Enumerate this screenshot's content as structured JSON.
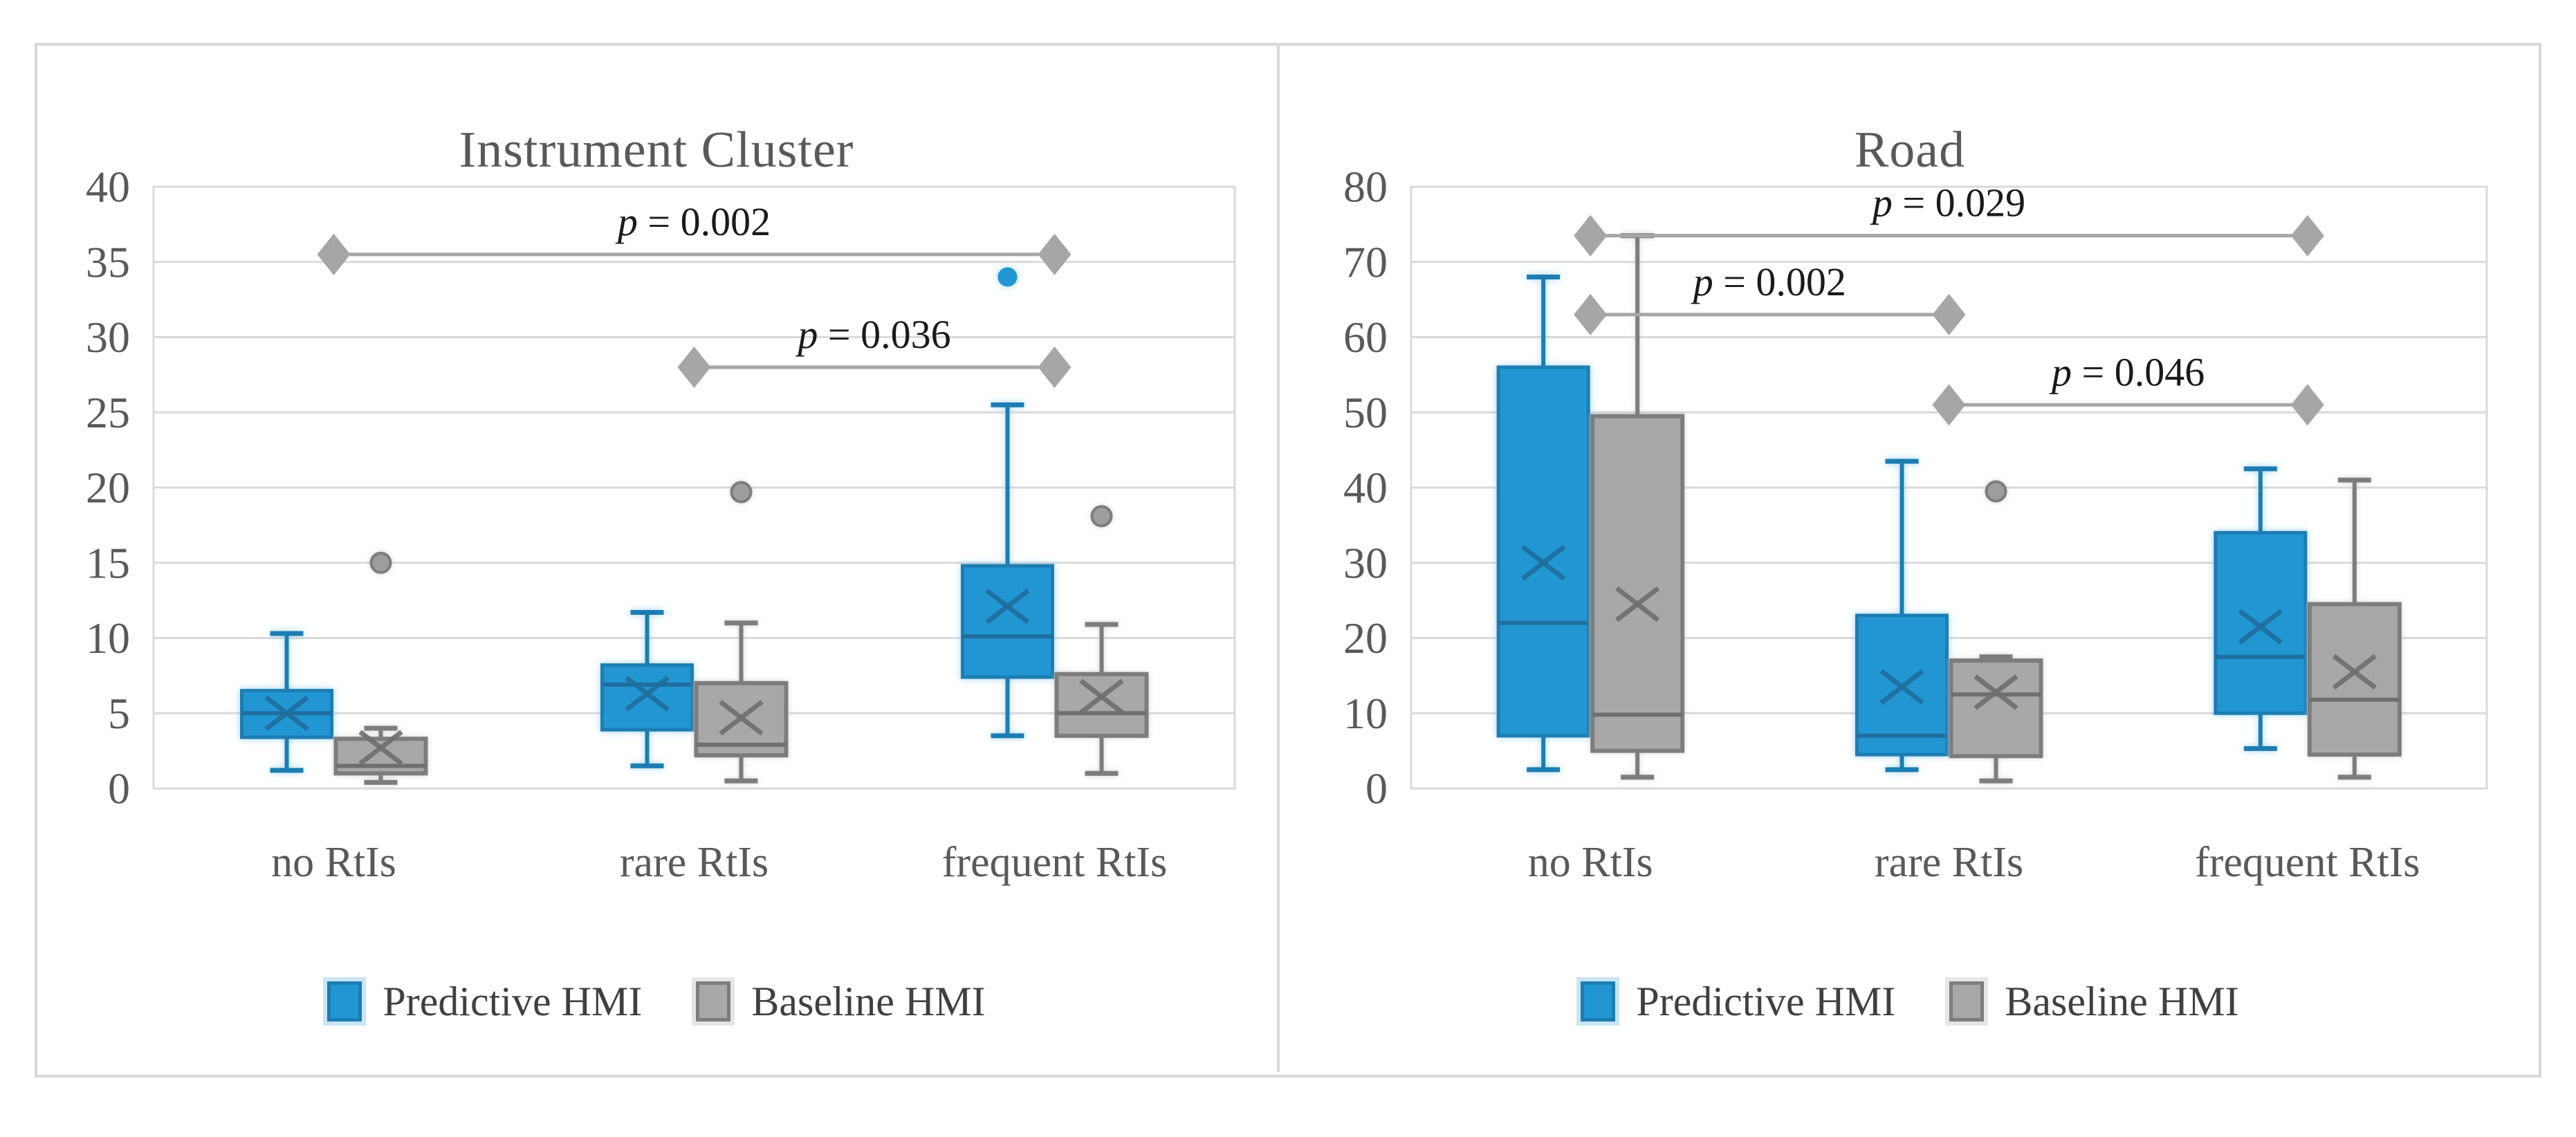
{
  "figure": {
    "border_color": "#d9d9d9",
    "gridline_color": "#d9d9d9",
    "axis_text_color": "#595959",
    "annotation_color": "#a6a6a6",
    "p_text_color": "#1a1a1a"
  },
  "chart_data": [
    {
      "type": "box",
      "title": "Instrument Cluster",
      "categories": [
        "no RtIs",
        "rare RtIs",
        "frequent RtIs"
      ],
      "ylim": [
        0,
        40
      ],
      "yticks": [
        0,
        5,
        10,
        15,
        20,
        25,
        30,
        35,
        40
      ],
      "grid": true,
      "legend_position": "bottom",
      "series": [
        {
          "name": "Predictive HMI",
          "color": "#2196d3",
          "edge": "#1d7db2",
          "detail": "#1f6e9d",
          "boxes": [
            {
              "min": 1.2,
              "q1": 3.4,
              "med": 5.0,
              "q3": 6.5,
              "max": 10.3,
              "mean": 5.0,
              "outliers": []
            },
            {
              "min": 1.5,
              "q1": 3.9,
              "med": 6.9,
              "q3": 8.2,
              "max": 11.7,
              "mean": 6.3,
              "outliers": []
            },
            {
              "min": 3.5,
              "q1": 7.4,
              "med": 10.1,
              "q3": 14.8,
              "max": 25.5,
              "mean": 12.1,
              "outliers": [
                34
              ]
            }
          ]
        },
        {
          "name": "Baseline HMI",
          "color": "#a8a8a8",
          "edge": "#7d7d7d",
          "detail": "#6f6f6f",
          "boxes": [
            {
              "min": 0.4,
              "q1": 1.0,
              "med": 1.5,
              "q3": 3.3,
              "max": 4.0,
              "mean": 2.7,
              "outliers": [
                15
              ]
            },
            {
              "min": 0.5,
              "q1": 2.2,
              "med": 2.9,
              "q3": 7.0,
              "max": 11.0,
              "mean": 4.7,
              "outliers": [
                19.7
              ]
            },
            {
              "min": 1.0,
              "q1": 3.5,
              "med": 5.0,
              "q3": 7.6,
              "max": 10.9,
              "mean": 6.1,
              "outliers": [
                18.1
              ]
            }
          ]
        }
      ],
      "annotations": [
        {
          "label": "p = 0.002",
          "from": 0,
          "to": 2,
          "y": 35.5
        },
        {
          "label": "p = 0.036",
          "from": 1,
          "to": 2,
          "y": 28
        }
      ]
    },
    {
      "type": "box",
      "title": "Road",
      "categories": [
        "no RtIs",
        "rare RtIs",
        "frequent RtIs"
      ],
      "ylim": [
        0,
        80
      ],
      "yticks": [
        0,
        10,
        20,
        30,
        40,
        50,
        60,
        70,
        80
      ],
      "grid": true,
      "legend_position": "bottom",
      "series": [
        {
          "name": "Predictive HMI",
          "color": "#2196d3",
          "edge": "#1d7db2",
          "detail": "#1f6e9d",
          "boxes": [
            {
              "min": 2.5,
              "q1": 7.0,
              "med": 22.0,
              "q3": 56.0,
              "max": 68.0,
              "mean": 30.0,
              "outliers": []
            },
            {
              "min": 2.5,
              "q1": 4.5,
              "med": 7.0,
              "q3": 23.0,
              "max": 43.5,
              "mean": 13.5,
              "outliers": []
            },
            {
              "min": 5.3,
              "q1": 10.0,
              "med": 17.5,
              "q3": 34.0,
              "max": 42.5,
              "mean": 21.5,
              "outliers": []
            }
          ]
        },
        {
          "name": "Baseline HMI",
          "color": "#a8a8a8",
          "edge": "#7d7d7d",
          "detail": "#6f6f6f",
          "boxes": [
            {
              "min": 1.5,
              "q1": 5.0,
              "med": 9.8,
              "q3": 49.5,
              "max": 73.5,
              "mean": 24.5,
              "outliers": []
            },
            {
              "min": 1.0,
              "q1": 4.3,
              "med": 12.5,
              "q3": 17.0,
              "max": 17.5,
              "mean": 12.8,
              "outliers": [
                39.5
              ]
            },
            {
              "min": 1.5,
              "q1": 4.5,
              "med": 11.8,
              "q3": 24.5,
              "max": 41.0,
              "mean": 15.5,
              "outliers": []
            }
          ]
        }
      ],
      "annotations": [
        {
          "label": "p = 0.029",
          "from": 0,
          "to": 2,
          "y": 73.5
        },
        {
          "label": "p = 0.002",
          "from": 0,
          "to": 1,
          "y": 63
        },
        {
          "label": "p = 0.046",
          "from": 1,
          "to": 2,
          "y": 51
        }
      ]
    }
  ]
}
